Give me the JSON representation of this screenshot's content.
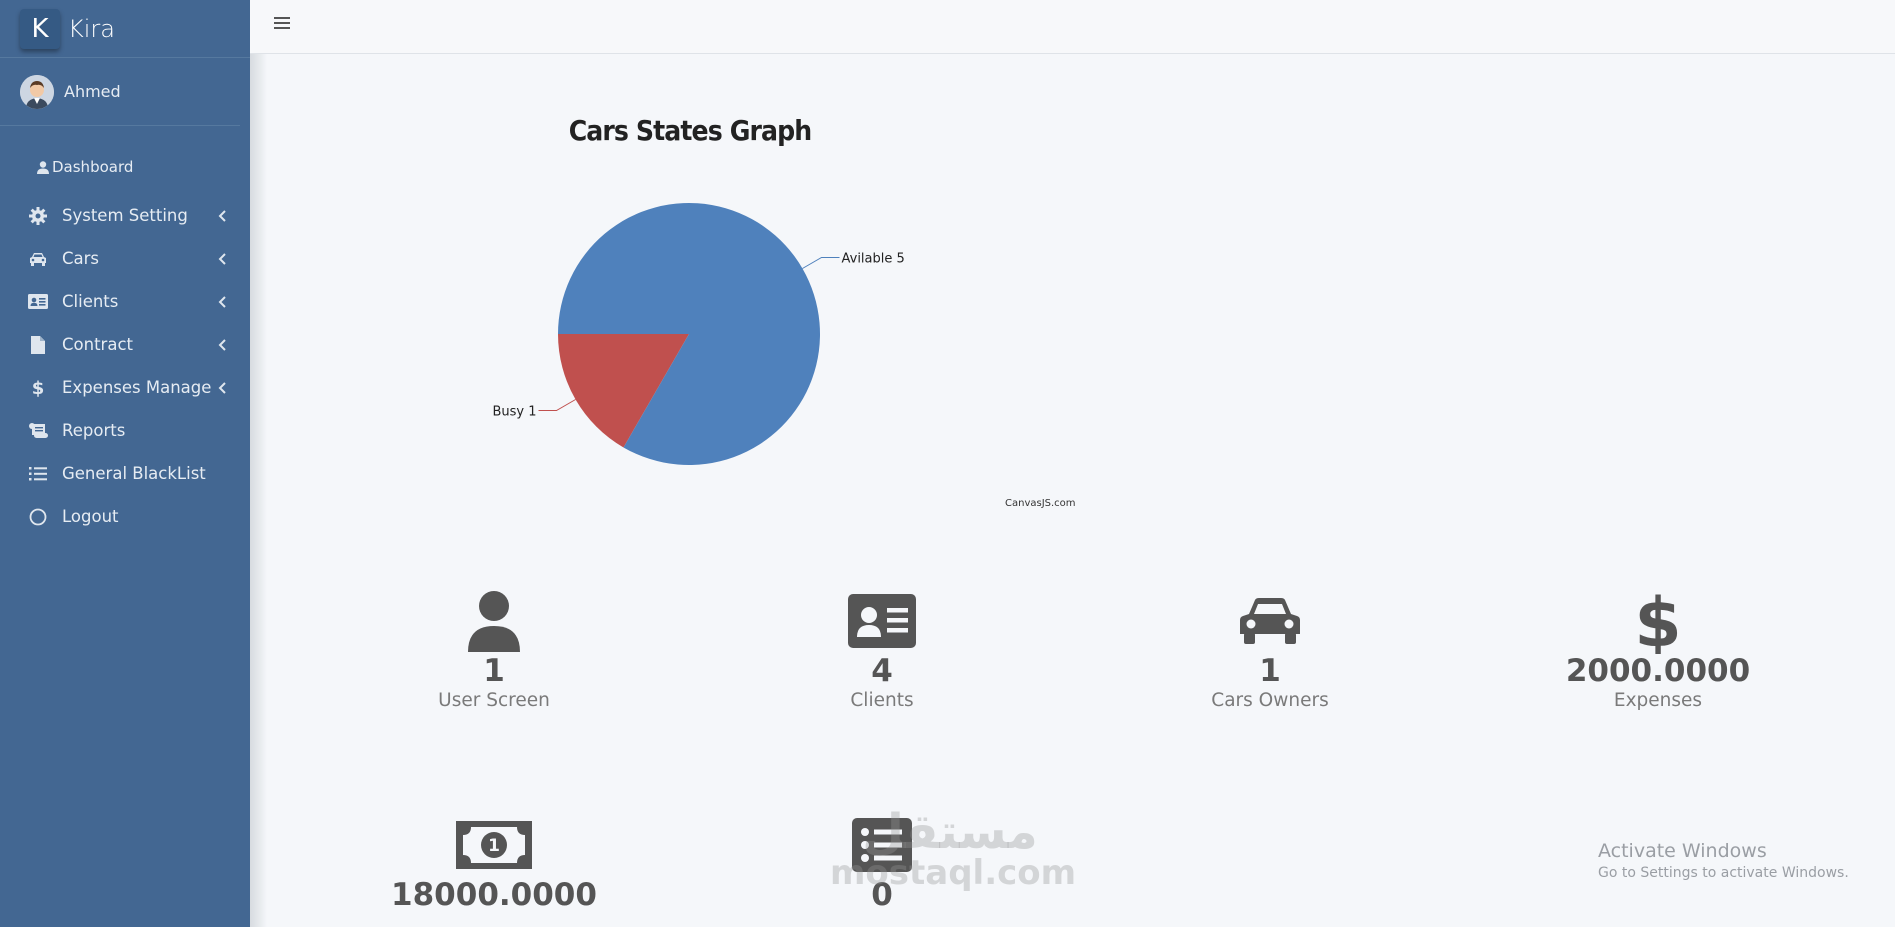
{
  "brand": {
    "logo_letter": "K",
    "name": "Kira"
  },
  "user": {
    "name": "Ahmed"
  },
  "nav": {
    "dashboard": "Dashboard",
    "items": [
      {
        "label": "System Setting",
        "icon": "gear-icon",
        "expandable": true
      },
      {
        "label": "Cars",
        "icon": "car-icon",
        "expandable": true
      },
      {
        "label": "Clients",
        "icon": "id-card-icon",
        "expandable": true
      },
      {
        "label": "Contract",
        "icon": "file-icon",
        "expandable": true
      },
      {
        "label": "Expenses Manage",
        "icon": "dollar-icon",
        "expandable": true
      },
      {
        "label": "Reports",
        "icon": "scroll-icon",
        "expandable": false
      },
      {
        "label": "General BlackList",
        "icon": "list-icon",
        "expandable": false
      },
      {
        "label": "Logout",
        "icon": "circle-icon",
        "expandable": false
      }
    ]
  },
  "chart_data": {
    "type": "pie",
    "title": "Cars States Graph",
    "slices": [
      {
        "label": "Busy",
        "value": 1,
        "color": "#c0504e"
      },
      {
        "label": "Avilable",
        "value": 5,
        "color": "#4f81bc"
      }
    ],
    "credit": "CanvasJS.com"
  },
  "stats": [
    {
      "value": "1",
      "label": "User Screen",
      "icon": "user-icon"
    },
    {
      "value": "4",
      "label": "Clients",
      "icon": "id-card-icon"
    },
    {
      "value": "1",
      "label": "Cars Owners",
      "icon": "car-icon"
    },
    {
      "value": "2000.0000",
      "label": "Expenses",
      "icon": "dollar-icon"
    },
    {
      "value": "18000.0000",
      "label": "",
      "icon": "money-bill-icon"
    },
    {
      "value": "0",
      "label": "",
      "icon": "list-alt-icon"
    }
  ],
  "watermark": {
    "line1": "مستقل",
    "line2": "mostaql.com"
  },
  "activate": {
    "title": "Activate Windows",
    "subtitle": "Go to Settings to activate Windows."
  },
  "colors": {
    "sidebar": "#436792",
    "icon": "#555555"
  }
}
